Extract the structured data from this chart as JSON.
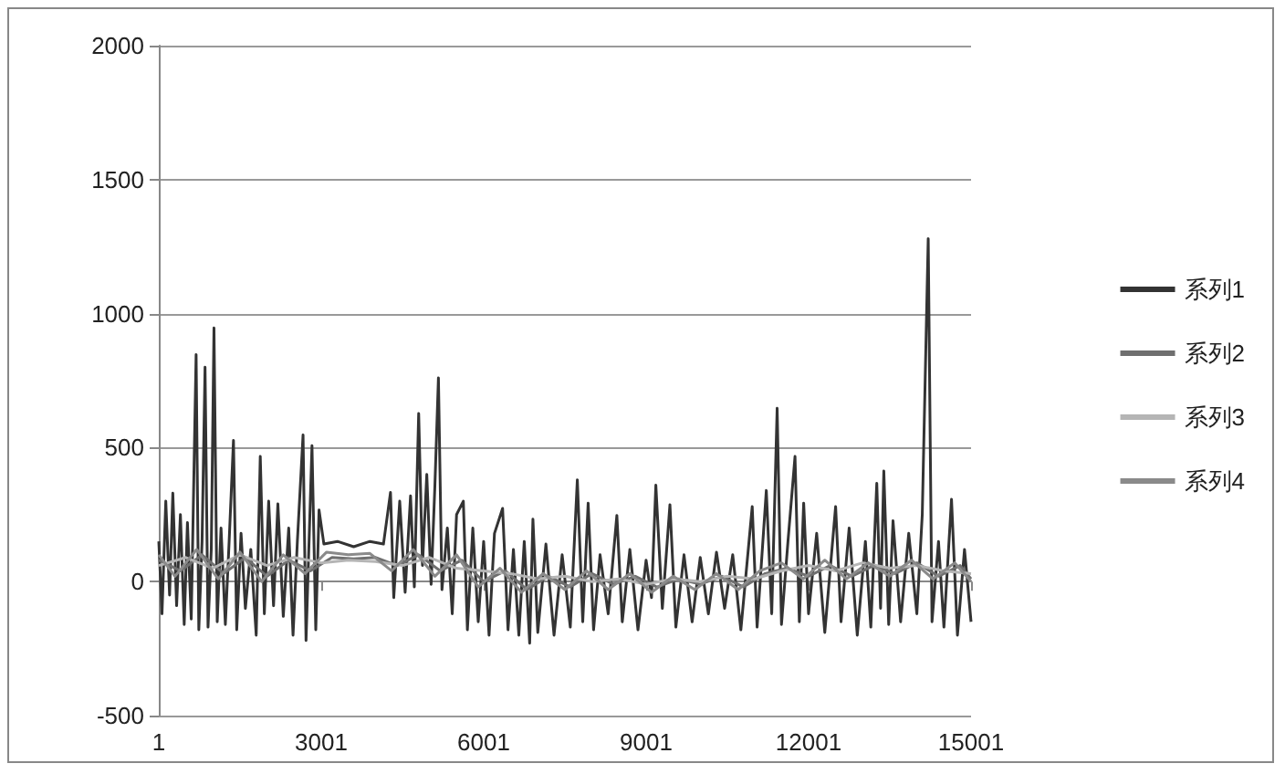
{
  "chart_data": {
    "type": "line",
    "xlim": [
      1,
      15001
    ],
    "xticks": [
      1,
      3001,
      6001,
      9001,
      12001,
      15001
    ],
    "ylim": [
      -500,
      2000
    ],
    "yticks": [
      -500,
      0,
      500,
      1000,
      1500,
      2000
    ],
    "grid": "y",
    "legend": "right",
    "marker": "none",
    "series": [
      {
        "name": "系列1",
        "color": "#333333",
        "x": [
          1,
          60,
          130,
          200,
          260,
          330,
          400,
          470,
          530,
          600,
          690,
          740,
          800,
          855,
          910,
          970,
          1020,
          1080,
          1150,
          1230,
          1300,
          1380,
          1440,
          1520,
          1600,
          1700,
          1800,
          1875,
          1950,
          2030,
          2120,
          2200,
          2300,
          2400,
          2480,
          2560,
          2665,
          2720,
          2830,
          2900,
          2960,
          3050,
          3300,
          3600,
          3900,
          4150,
          4280,
          4340,
          4450,
          4550,
          4650,
          4720,
          4800,
          4870,
          4950,
          5030,
          5100,
          5165,
          5230,
          5330,
          5420,
          5500,
          5625,
          5700,
          5800,
          5900,
          6000,
          6100,
          6200,
          6350,
          6450,
          6550,
          6650,
          6750,
          6850,
          6910,
          7000,
          7150,
          7300,
          7450,
          7600,
          7730,
          7830,
          7930,
          8030,
          8150,
          8300,
          8460,
          8560,
          8700,
          8850,
          9000,
          9100,
          9180,
          9300,
          9440,
          9550,
          9700,
          9850,
          10000,
          10150,
          10300,
          10450,
          10600,
          10750,
          10960,
          11050,
          11220,
          11320,
          11420,
          11500,
          11620,
          11750,
          11830,
          11910,
          12000,
          12150,
          12300,
          12500,
          12600,
          12750,
          12900,
          13050,
          13150,
          13260,
          13330,
          13390,
          13480,
          13560,
          13700,
          13850,
          14000,
          14100,
          14210,
          14280,
          14400,
          14500,
          14640,
          14750,
          14880,
          15001
        ],
        "values": [
          150,
          -120,
          300,
          -50,
          330,
          -90,
          250,
          -160,
          220,
          -140,
          847,
          -180,
          150,
          800,
          -170,
          120,
          947,
          -150,
          200,
          -160,
          150,
          527,
          -180,
          180,
          -100,
          120,
          -200,
          467,
          -120,
          300,
          -90,
          290,
          -130,
          200,
          -200,
          150,
          547,
          -220,
          507,
          -180,
          267,
          140,
          150,
          130,
          150,
          140,
          333,
          -60,
          300,
          -40,
          320,
          -20,
          627,
          60,
          400,
          -10,
          360,
          760,
          -30,
          200,
          -120,
          250,
          300,
          -180,
          200,
          -150,
          150,
          -200,
          180,
          273,
          -180,
          120,
          -200,
          150,
          -230,
          233,
          -190,
          140,
          -200,
          100,
          -170,
          380,
          -150,
          293,
          -180,
          100,
          -120,
          247,
          -150,
          120,
          -180,
          80,
          -60,
          360,
          -100,
          287,
          -170,
          100,
          -150,
          90,
          -120,
          110,
          -100,
          100,
          -180,
          280,
          -170,
          340,
          -120,
          647,
          -160,
          150,
          467,
          -150,
          293,
          -120,
          180,
          -190,
          280,
          -150,
          200,
          -200,
          150,
          -170,
          367,
          -100,
          413,
          -160,
          227,
          -150,
          180,
          -120,
          250,
          1280,
          -150,
          150,
          -170,
          307,
          -200,
          120,
          -150
        ]
      },
      {
        "name": "系列2",
        "color": "#6f6f6f",
        "x": [
          1,
          400,
          800,
          1200,
          1600,
          2000,
          2400,
          2800,
          3200,
          3600,
          4000,
          4400,
          4800,
          5200,
          5600,
          6000,
          6400,
          6800,
          7200,
          7600,
          8000,
          8400,
          8800,
          9200,
          9600,
          10000,
          10400,
          10800,
          11200,
          11600,
          12000,
          12400,
          12800,
          13200,
          13600,
          14000,
          14400,
          14800,
          15001
        ],
        "values": [
          80,
          40,
          100,
          30,
          90,
          20,
          80,
          40,
          90,
          85,
          90,
          60,
          100,
          40,
          80,
          0,
          40,
          -30,
          20,
          -20,
          30,
          -10,
          20,
          -20,
          10,
          -10,
          20,
          -20,
          30,
          50,
          20,
          60,
          20,
          60,
          30,
          70,
          20,
          60,
          10
        ]
      },
      {
        "name": "系列3",
        "color": "#b5b5b5",
        "x": [
          1,
          500,
          1000,
          1500,
          2000,
          2500,
          3000,
          3500,
          4000,
          4500,
          5000,
          5500,
          6000,
          6500,
          7000,
          7500,
          8000,
          8500,
          9000,
          9500,
          10000,
          10500,
          11000,
          11500,
          12000,
          12500,
          13000,
          13500,
          14000,
          14500,
          15001
        ],
        "values": [
          60,
          90,
          50,
          100,
          60,
          90,
          70,
          80,
          75,
          60,
          90,
          50,
          40,
          30,
          10,
          20,
          0,
          10,
          -10,
          10,
          0,
          20,
          10,
          40,
          60,
          40,
          70,
          50,
          60,
          40,
          30
        ]
      },
      {
        "name": "系列4",
        "color": "#8a8a8a",
        "x": [
          1,
          300,
          700,
          1100,
          1500,
          1900,
          2300,
          2700,
          3100,
          3500,
          3900,
          4300,
          4700,
          5100,
          5500,
          5900,
          6300,
          6700,
          7100,
          7500,
          7900,
          8300,
          8700,
          9100,
          9500,
          9900,
          10300,
          10700,
          11100,
          11500,
          11900,
          12300,
          12700,
          13100,
          13500,
          13900,
          14300,
          14700,
          15001
        ],
        "values": [
          100,
          20,
          120,
          10,
          110,
          0,
          100,
          30,
          110,
          100,
          105,
          40,
          120,
          20,
          100,
          -20,
          50,
          -40,
          30,
          -30,
          40,
          -30,
          30,
          -40,
          20,
          -30,
          30,
          -30,
          40,
          70,
          10,
          80,
          10,
          70,
          20,
          80,
          10,
          70,
          0
        ]
      }
    ]
  }
}
